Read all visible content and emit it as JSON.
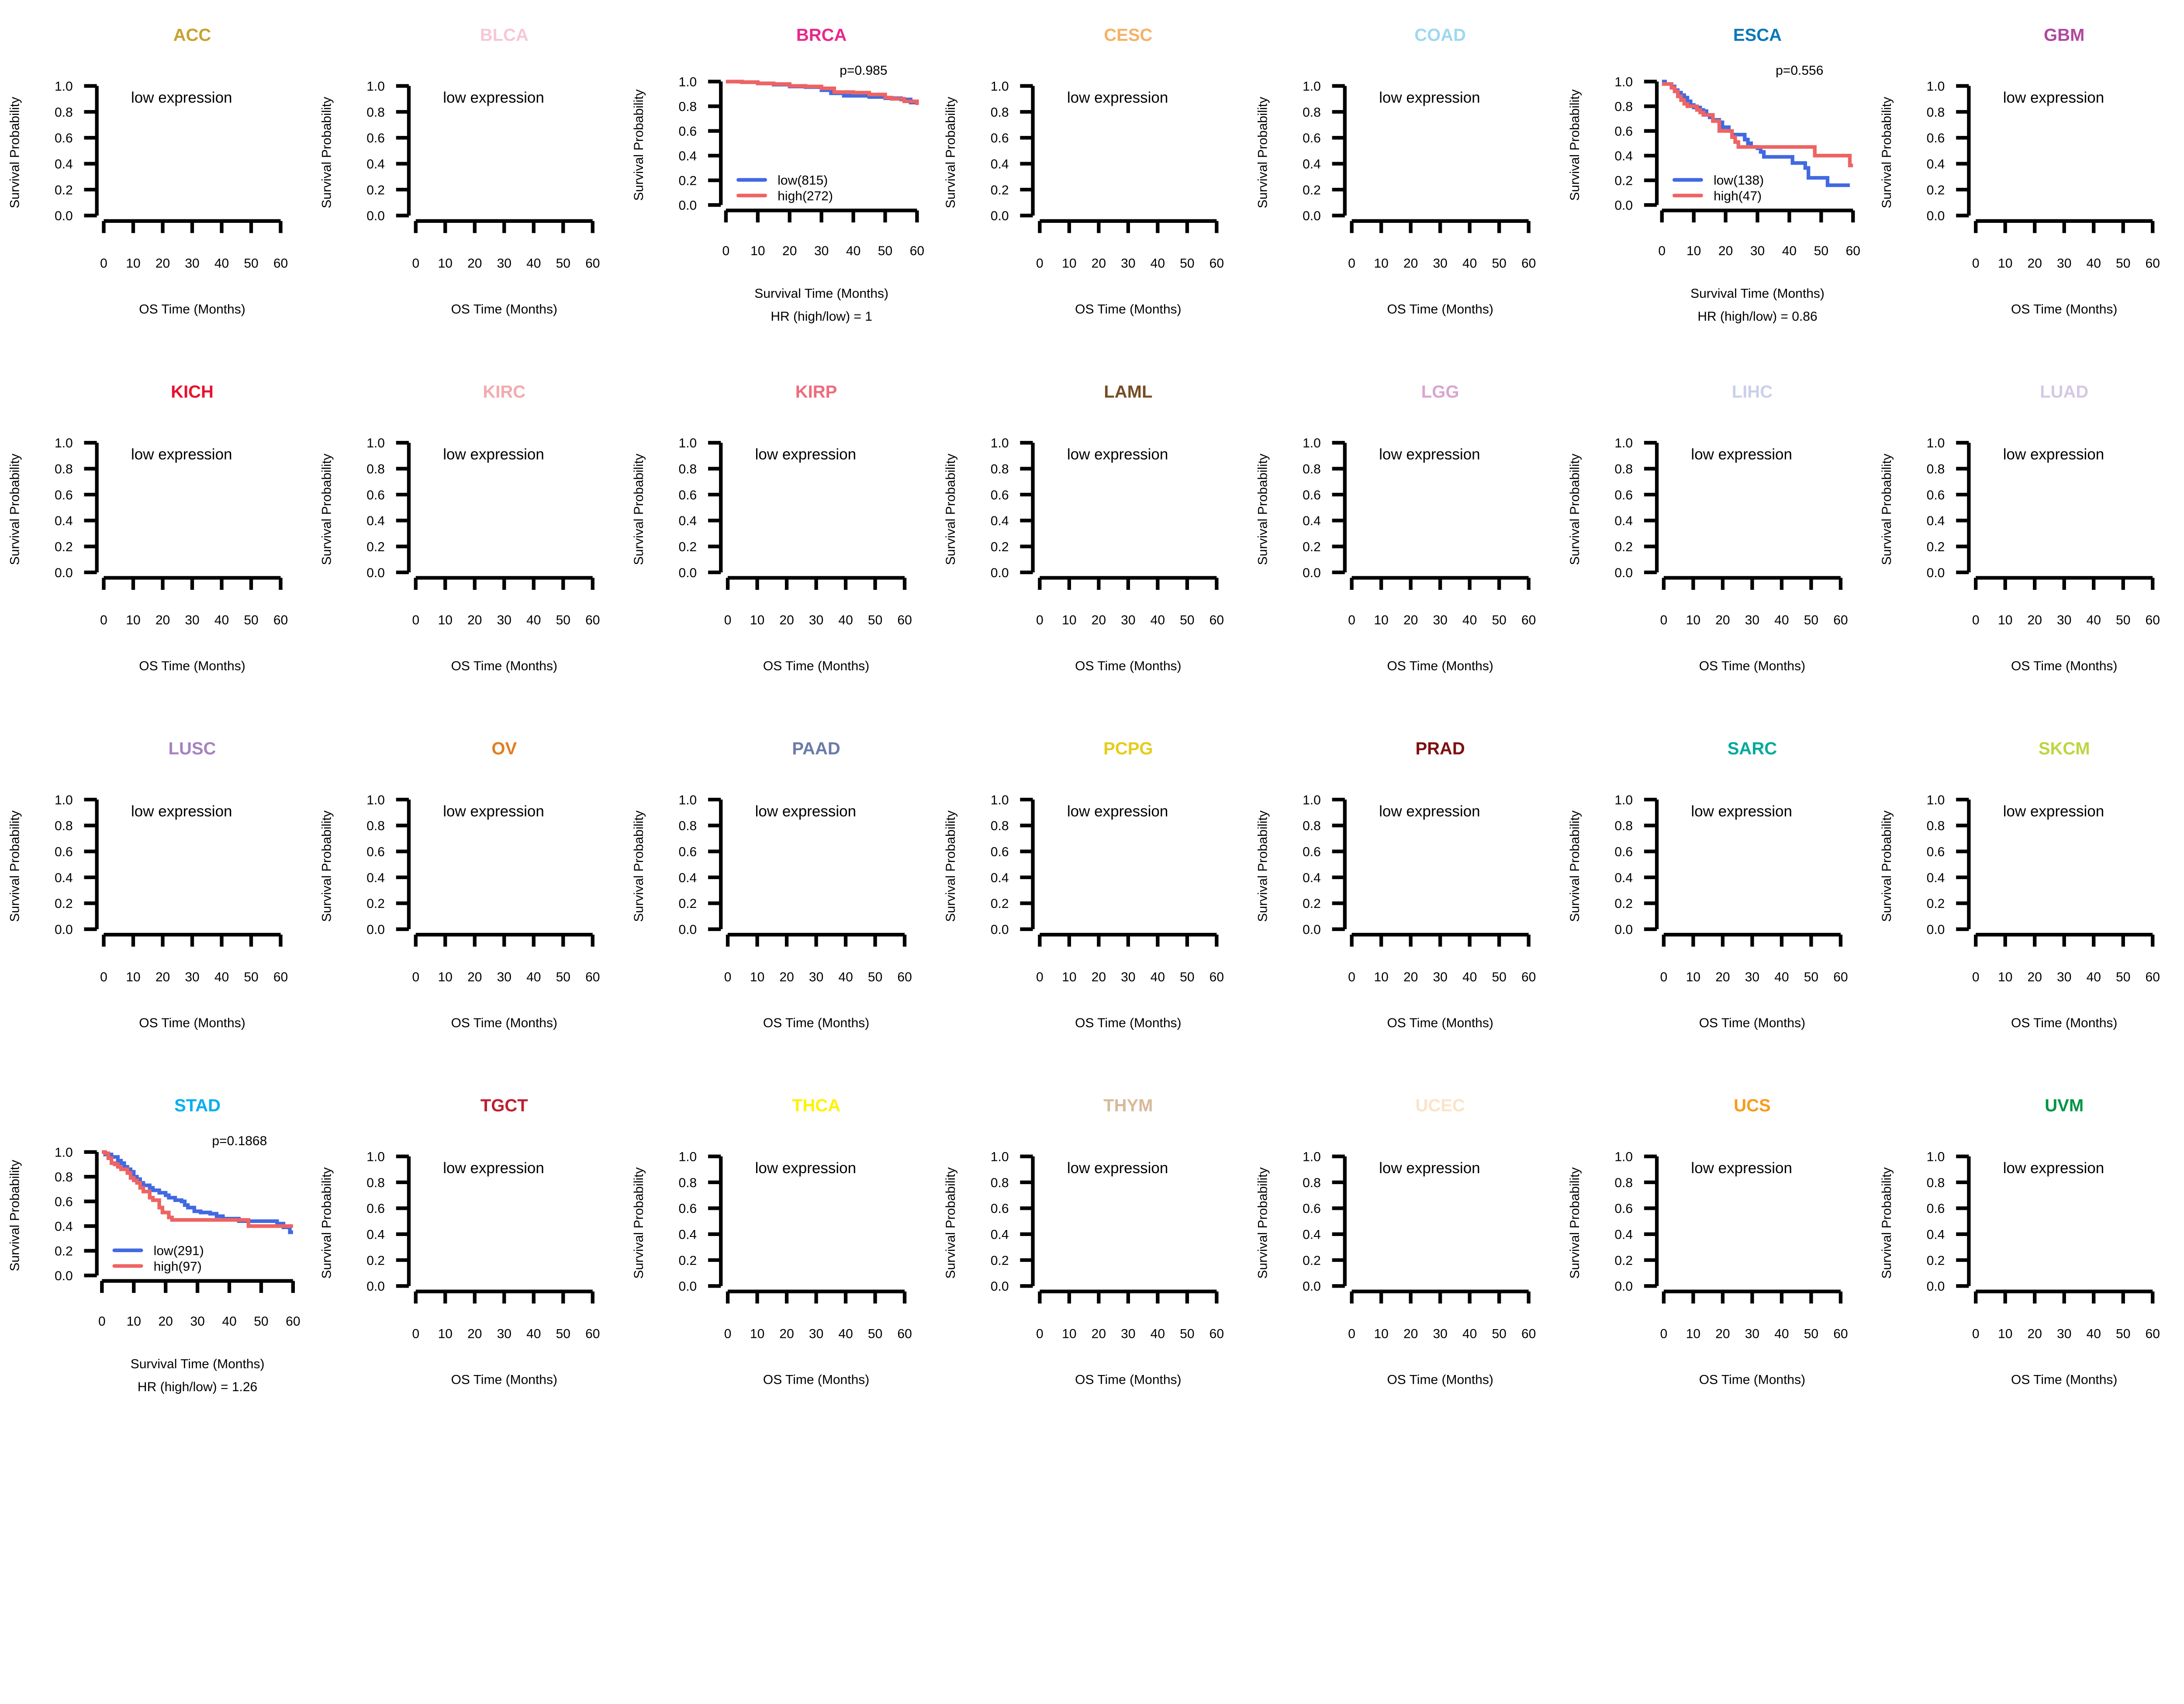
{
  "common": {
    "ylabel": "Survival Probability",
    "xlabel_empty": "OS Time (Months)",
    "xlabel_km": "Survival Time (Months)",
    "empty_note": "low expression",
    "y_ticks": [
      "0.0",
      "0.2",
      "0.4",
      "0.6",
      "0.8",
      "1.0"
    ],
    "x_ticks": [
      "0",
      "10",
      "20",
      "30",
      "40",
      "50",
      "60"
    ],
    "low_color": "#4169E1",
    "high_color": "#EE6363"
  },
  "chart_data": [
    {
      "title": "ACC",
      "color": "#C5A32F",
      "type": "empty"
    },
    {
      "title": "BLCA",
      "color": "#F7C6D9",
      "type": "empty"
    },
    {
      "title": "BRCA",
      "color": "#E8278C",
      "type": "km",
      "pvalue": "p=0.985",
      "hr_label": "HR (high/low) =  1",
      "legend": [
        "low(815)",
        "high(272)"
      ],
      "xlim": [
        0,
        60
      ],
      "ylim": [
        0,
        1
      ],
      "series": [
        {
          "name": "low",
          "x": [
            0,
            5,
            10,
            15,
            20,
            25,
            30,
            33,
            37,
            45,
            50,
            55,
            58,
            60
          ],
          "y": [
            1,
            0.995,
            0.985,
            0.975,
            0.96,
            0.955,
            0.93,
            0.905,
            0.885,
            0.875,
            0.865,
            0.855,
            0.83,
            0.82
          ]
        },
        {
          "name": "high",
          "x": [
            0,
            5,
            10,
            15,
            20,
            25,
            30,
            34,
            40,
            45,
            50,
            52,
            56,
            60
          ],
          "y": [
            1,
            0.995,
            0.985,
            0.98,
            0.965,
            0.96,
            0.945,
            0.915,
            0.91,
            0.895,
            0.87,
            0.86,
            0.84,
            0.81
          ]
        }
      ]
    },
    {
      "title": "CESC",
      "color": "#F4B266",
      "type": "empty"
    },
    {
      "title": "COAD",
      "color": "#9ED8F0",
      "type": "empty"
    },
    {
      "title": "ESCA",
      "color": "#0A77B8",
      "type": "km",
      "pvalue": "p=0.556",
      "hr_label": "HR (high/low) =  0.86",
      "legend": [
        "low(138)",
        "high(47)"
      ],
      "xlim": [
        0,
        60
      ],
      "ylim": [
        0,
        1
      ],
      "series": [
        {
          "name": "low",
          "x": [
            0,
            1,
            3,
            4,
            5,
            6,
            7,
            8,
            9,
            10,
            12,
            13,
            14,
            15,
            16,
            18,
            19,
            21,
            22,
            25,
            26,
            27,
            28,
            30,
            31,
            32,
            41,
            45,
            46,
            52,
            59
          ],
          "y": [
            1,
            0.98,
            0.96,
            0.93,
            0.91,
            0.89,
            0.87,
            0.84,
            0.81,
            0.79,
            0.77,
            0.76,
            0.73,
            0.71,
            0.69,
            0.67,
            0.63,
            0.6,
            0.57,
            0.57,
            0.53,
            0.5,
            0.47,
            0.46,
            0.43,
            0.39,
            0.34,
            0.3,
            0.22,
            0.16,
            0.16
          ]
        },
        {
          "name": "high",
          "x": [
            0,
            2,
            3,
            4,
            5,
            6,
            7,
            8,
            10,
            11,
            12,
            13,
            16,
            18,
            22,
            23,
            24,
            48,
            59,
            60
          ],
          "y": [
            0.98,
            0.98,
            0.95,
            0.92,
            0.88,
            0.85,
            0.82,
            0.8,
            0.8,
            0.77,
            0.75,
            0.73,
            0.68,
            0.6,
            0.55,
            0.51,
            0.47,
            0.4,
            0.32,
            0.32
          ]
        }
      ]
    },
    {
      "title": "GBM",
      "color": "#B0489F",
      "type": "empty"
    },
    {
      "title": "KICH",
      "color": "#E8112D",
      "type": "empty"
    },
    {
      "title": "KIRC",
      "color": "#F4A9B0",
      "type": "empty"
    },
    {
      "title": "KIRP",
      "color": "#EE6C7C",
      "type": "empty"
    },
    {
      "title": "LAML",
      "color": "#754C24",
      "type": "empty"
    },
    {
      "title": "LGG",
      "color": "#D9A5D0",
      "type": "empty"
    },
    {
      "title": "LIHC",
      "color": "#CAD0EA",
      "type": "empty"
    },
    {
      "title": "LUAD",
      "color": "#D4C8E6",
      "type": "empty"
    },
    {
      "title": "LUSC",
      "color": "#A682C0",
      "type": "empty"
    },
    {
      "title": "OV",
      "color": "#E27D1F",
      "type": "empty"
    },
    {
      "title": "PAAD",
      "color": "#6B7BA8",
      "type": "empty"
    },
    {
      "title": "PCPG",
      "color": "#E5CC1A",
      "type": "empty"
    },
    {
      "title": "PRAD",
      "color": "#7D1010",
      "type": "empty"
    },
    {
      "title": "SARC",
      "color": "#00A99D",
      "type": "empty"
    },
    {
      "title": "SKCM",
      "color": "#BBD642",
      "type": "empty"
    },
    {
      "title": "STAD",
      "color": "#00AEEF",
      "type": "km",
      "pvalue": "p=0.1868",
      "hr_label": "HR (high/low) =  1.26",
      "legend": [
        "low(291)",
        "high(97)"
      ],
      "xlim": [
        0,
        60
      ],
      "ylim": [
        0,
        1
      ],
      "series": [
        {
          "name": "low",
          "x": [
            0,
            1,
            3,
            5,
            6,
            7,
            8,
            9,
            10,
            11,
            12,
            13,
            15,
            16,
            18,
            20,
            21,
            23,
            25,
            26,
            27,
            29,
            31,
            34,
            36,
            38,
            43,
            55,
            57,
            59,
            60
          ],
          "y": [
            1,
            0.98,
            0.96,
            0.93,
            0.91,
            0.88,
            0.86,
            0.84,
            0.8,
            0.78,
            0.75,
            0.73,
            0.71,
            0.69,
            0.67,
            0.65,
            0.63,
            0.61,
            0.6,
            0.57,
            0.55,
            0.52,
            0.51,
            0.5,
            0.48,
            0.46,
            0.44,
            0.42,
            0.39,
            0.35,
            0.35
          ]
        },
        {
          "name": "high",
          "x": [
            0,
            1,
            2,
            3,
            4,
            5,
            6,
            8,
            9,
            10,
            11,
            12,
            13,
            15,
            16,
            18,
            19,
            21,
            22,
            46,
            60
          ],
          "y": [
            1,
            0.99,
            0.95,
            0.91,
            0.9,
            0.88,
            0.86,
            0.83,
            0.79,
            0.77,
            0.75,
            0.71,
            0.68,
            0.63,
            0.61,
            0.55,
            0.51,
            0.47,
            0.45,
            0.4,
            0.4
          ]
        }
      ]
    },
    {
      "title": "TGCT",
      "color": "#BE1E2D",
      "type": "empty"
    },
    {
      "title": "THCA",
      "color": "#FFF200",
      "type": "empty"
    },
    {
      "title": "THYM",
      "color": "#D7B99A",
      "type": "empty"
    },
    {
      "title": "UCEC",
      "color": "#FCE3C8",
      "type": "empty"
    },
    {
      "title": "UCS",
      "color": "#F89B1C",
      "type": "empty"
    },
    {
      "title": "UVM",
      "color": "#009444",
      "type": "empty"
    }
  ]
}
